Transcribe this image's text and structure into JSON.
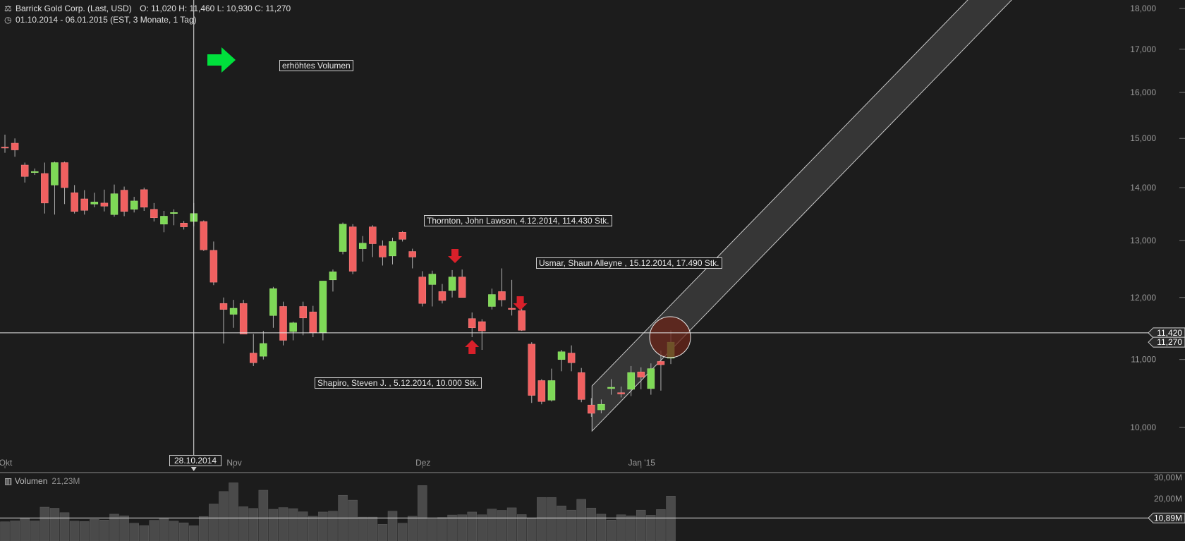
{
  "header": {
    "instrument": "Barrick Gold Corp. (Last, USD)",
    "ohlc": "O: 11,020  H: 11,460  L: 10,930  C: 11,270",
    "range": "01.10.2014 - 06.01.2015 (EST, 3 Monate, 1 Tag)"
  },
  "labels": {
    "volume_signal": "erhöhtes Volumen",
    "insider1": "Thornton, John Lawson, 4.12.2014, 114.430 Stk.",
    "insider2": "Usmar, Shaun Alleyne , 15.12.2014, 17.490 Stk.",
    "insider3": "Shapiro, Steven J. , 5.12.2014, 10.000 Stk.",
    "crosshair_date": "28.10.2014",
    "crosshair_price": "11,420",
    "last_price": "11,270",
    "volume_title": "Volumen",
    "volume_value": "21,23M",
    "volume_crosshair": "10,89M"
  },
  "colors": {
    "background": "#1c1c1c",
    "up": "#7ed957",
    "down": "#f06060",
    "signal_green": "#00e03c",
    "signal_red": "#d9202a",
    "grid_text": "#9a9a9a",
    "channel": "#3a3a3a"
  },
  "chart_data": {
    "type": "candlestick",
    "price_axis": {
      "scale": "log",
      "ticks": [
        10000,
        11000,
        12000,
        13000,
        14000,
        15000,
        16000,
        17000,
        18000
      ],
      "tick_labels": [
        "10,000",
        "11,000",
        "12,000",
        "13,000",
        "14,000",
        "15,000",
        "16,000",
        "17,000",
        "18,000"
      ]
    },
    "x_ticks": [
      {
        "date": "2014-10-01",
        "label": "Okt"
      },
      {
        "date": "2014-11-03",
        "label": "Nov"
      },
      {
        "date": "2014-12-01",
        "label": "Dez"
      },
      {
        "date": "2015-01-02",
        "label": "Jan '15"
      }
    ],
    "candles": [
      {
        "date": "2014-10-01",
        "o": 14820,
        "h": 15080,
        "l": 14700,
        "c": 14800
      },
      {
        "date": "2014-10-02",
        "o": 14900,
        "h": 15000,
        "l": 14620,
        "c": 14760
      },
      {
        "date": "2014-10-03",
        "o": 14450,
        "h": 14500,
        "l": 14100,
        "c": 14220
      },
      {
        "date": "2014-10-06",
        "o": 14300,
        "h": 14380,
        "l": 14250,
        "c": 14320
      },
      {
        "date": "2014-10-07",
        "o": 14280,
        "h": 14500,
        "l": 13500,
        "c": 13700
      },
      {
        "date": "2014-10-08",
        "o": 14050,
        "h": 14520,
        "l": 13480,
        "c": 14500
      },
      {
        "date": "2014-10-09",
        "o": 14500,
        "h": 14520,
        "l": 13680,
        "c": 14000
      },
      {
        "date": "2014-10-10",
        "o": 13900,
        "h": 14050,
        "l": 13500,
        "c": 13540
      },
      {
        "date": "2014-10-13",
        "o": 13780,
        "h": 13950,
        "l": 13480,
        "c": 13560
      },
      {
        "date": "2014-10-14",
        "o": 13680,
        "h": 13900,
        "l": 13620,
        "c": 13720
      },
      {
        "date": "2014-10-15",
        "o": 13700,
        "h": 13960,
        "l": 13540,
        "c": 13640
      },
      {
        "date": "2014-10-16",
        "o": 13480,
        "h": 14060,
        "l": 13440,
        "c": 13880
      },
      {
        "date": "2014-10-17",
        "o": 13950,
        "h": 14020,
        "l": 13450,
        "c": 13540
      },
      {
        "date": "2014-10-20",
        "o": 13580,
        "h": 13820,
        "l": 13520,
        "c": 13740
      },
      {
        "date": "2014-10-21",
        "o": 13960,
        "h": 14000,
        "l": 13550,
        "c": 13620
      },
      {
        "date": "2014-10-22",
        "o": 13580,
        "h": 13700,
        "l": 13350,
        "c": 13420
      },
      {
        "date": "2014-10-23",
        "o": 13300,
        "h": 13550,
        "l": 13150,
        "c": 13450
      },
      {
        "date": "2014-10-24",
        "o": 13520,
        "h": 13580,
        "l": 13280,
        "c": 13520
      },
      {
        "date": "2014-10-27",
        "o": 13320,
        "h": 13360,
        "l": 13200,
        "c": 13250
      },
      {
        "date": "2014-10-28",
        "o": 13350,
        "h": 13700,
        "l": 13260,
        "c": 13500
      },
      {
        "date": "2014-10-29",
        "o": 13350,
        "h": 13370,
        "l": 12810,
        "c": 12830
      },
      {
        "date": "2014-10-30",
        "o": 12820,
        "h": 12980,
        "l": 12210,
        "c": 12260
      },
      {
        "date": "2014-10-31",
        "o": 11900,
        "h": 12000,
        "l": 11250,
        "c": 11800
      },
      {
        "date": "2014-11-03",
        "o": 11720,
        "h": 11960,
        "l": 11500,
        "c": 11820
      },
      {
        "date": "2014-11-04",
        "o": 11900,
        "h": 11960,
        "l": 11400,
        "c": 11400
      },
      {
        "date": "2014-11-05",
        "o": 11100,
        "h": 11400,
        "l": 10900,
        "c": 10950
      },
      {
        "date": "2014-11-06",
        "o": 11050,
        "h": 11450,
        "l": 11000,
        "c": 11250
      },
      {
        "date": "2014-11-07",
        "o": 11700,
        "h": 12180,
        "l": 11500,
        "c": 12150
      },
      {
        "date": "2014-11-10",
        "o": 11850,
        "h": 11930,
        "l": 11220,
        "c": 11300
      },
      {
        "date": "2014-11-11",
        "o": 11440,
        "h": 11600,
        "l": 11300,
        "c": 11580
      },
      {
        "date": "2014-11-12",
        "o": 11850,
        "h": 11930,
        "l": 11380,
        "c": 11660
      },
      {
        "date": "2014-11-13",
        "o": 11760,
        "h": 11860,
        "l": 11350,
        "c": 11420
      },
      {
        "date": "2014-11-14",
        "o": 11420,
        "h": 12280,
        "l": 11300,
        "c": 12280
      },
      {
        "date": "2014-11-17",
        "o": 12300,
        "h": 12480,
        "l": 12100,
        "c": 12440
      },
      {
        "date": "2014-11-18",
        "o": 12800,
        "h": 13330,
        "l": 12750,
        "c": 13300
      },
      {
        "date": "2014-11-19",
        "o": 13250,
        "h": 13300,
        "l": 12400,
        "c": 12450
      },
      {
        "date": "2014-11-20",
        "o": 12850,
        "h": 13080,
        "l": 12620,
        "c": 12950
      },
      {
        "date": "2014-11-21",
        "o": 13250,
        "h": 13280,
        "l": 12700,
        "c": 12940
      },
      {
        "date": "2014-11-24",
        "o": 12900,
        "h": 13000,
        "l": 12550,
        "c": 12700
      },
      {
        "date": "2014-11-25",
        "o": 12720,
        "h": 13050,
        "l": 12570,
        "c": 12980
      },
      {
        "date": "2014-11-26",
        "o": 13150,
        "h": 13170,
        "l": 12980,
        "c": 13020
      },
      {
        "date": "2014-11-28",
        "o": 12800,
        "h": 12850,
        "l": 12500,
        "c": 12700
      },
      {
        "date": "2014-12-01",
        "o": 12350,
        "h": 12450,
        "l": 11850,
        "c": 11900
      },
      {
        "date": "2014-12-02",
        "o": 12220,
        "h": 12460,
        "l": 11850,
        "c": 12400
      },
      {
        "date": "2014-12-03",
        "o": 12100,
        "h": 12230,
        "l": 11900,
        "c": 11950
      },
      {
        "date": "2014-12-04",
        "o": 12120,
        "h": 12470,
        "l": 12000,
        "c": 12350
      },
      {
        "date": "2014-12-05",
        "o": 12350,
        "h": 12480,
        "l": 12000,
        "c": 12000
      },
      {
        "date": "2014-12-08",
        "o": 11650,
        "h": 11750,
        "l": 11350,
        "c": 11500
      },
      {
        "date": "2014-12-09",
        "o": 11600,
        "h": 11640,
        "l": 11150,
        "c": 11450
      },
      {
        "date": "2014-12-10",
        "o": 11850,
        "h": 12150,
        "l": 11800,
        "c": 12050
      },
      {
        "date": "2014-12-11",
        "o": 12100,
        "h": 12500,
        "l": 11850,
        "c": 11960
      },
      {
        "date": "2014-12-12",
        "o": 11820,
        "h": 12300,
        "l": 11700,
        "c": 11800
      },
      {
        "date": "2014-12-15",
        "o": 11780,
        "h": 11850,
        "l": 11450,
        "c": 11460
      },
      {
        "date": "2014-12-16",
        "o": 11240,
        "h": 11270,
        "l": 10350,
        "c": 10460
      },
      {
        "date": "2014-12-17",
        "o": 10680,
        "h": 10700,
        "l": 10330,
        "c": 10370
      },
      {
        "date": "2014-12-18",
        "o": 10390,
        "h": 10860,
        "l": 10370,
        "c": 10680
      },
      {
        "date": "2014-12-19",
        "o": 11000,
        "h": 11150,
        "l": 10820,
        "c": 11120
      },
      {
        "date": "2014-12-22",
        "o": 11100,
        "h": 11220,
        "l": 10820,
        "c": 10950
      },
      {
        "date": "2014-12-23",
        "o": 10800,
        "h": 10870,
        "l": 10360,
        "c": 10400
      },
      {
        "date": "2014-12-24",
        "o": 10320,
        "h": 10420,
        "l": 10150,
        "c": 10200
      },
      {
        "date": "2014-12-26",
        "o": 10250,
        "h": 10400,
        "l": 10200,
        "c": 10330
      },
      {
        "date": "2014-12-29",
        "o": 10560,
        "h": 10700,
        "l": 10470,
        "c": 10580
      },
      {
        "date": "2014-12-30",
        "o": 10500,
        "h": 10590,
        "l": 10430,
        "c": 10480
      },
      {
        "date": "2014-12-31",
        "o": 10550,
        "h": 10900,
        "l": 10450,
        "c": 10800
      },
      {
        "date": "2015-01-02",
        "o": 10810,
        "h": 10880,
        "l": 10550,
        "c": 10730
      },
      {
        "date": "2015-01-05",
        "o": 10560,
        "h": 10940,
        "l": 10470,
        "c": 10860
      },
      {
        "date": "2015-01-06",
        "o": 10970,
        "h": 11140,
        "l": 10530,
        "c": 10920
      },
      {
        "date": "2015-01-07",
        "o": 11020,
        "h": 11460,
        "l": 10930,
        "c": 11270
      }
    ],
    "volume_axis": {
      "ticks": [
        20000000,
        30000000
      ],
      "tick_labels": [
        "20,00M",
        "30,00M"
      ]
    },
    "volume": [
      9.1,
      9.5,
      10.9,
      9.5,
      16,
      15.5,
      13.4,
      9.4,
      9.2,
      10.2,
      9.9,
      12.7,
      11.9,
      8.4,
      7.3,
      9.8,
      10.5,
      9.4,
      8.6,
      7.2,
      11.6,
      17.5,
      23.4,
      27.5,
      16.2,
      15.4,
      24,
      15,
      15.8,
      15.3,
      13.8,
      11.7,
      13.7,
      14.1,
      21.6,
      19.3,
      11.3,
      11.3,
      7.9,
      14.1,
      8.4,
      11.7,
      26.2,
      10.4,
      11.1,
      12.3,
      12.4,
      13.7,
      12.4,
      15.1,
      14.5,
      15.7,
      12.5,
      10.7,
      20.6,
      20.6,
      16.6,
      14.6,
      19.7,
      15.6,
      12.7,
      9.9,
      12.4,
      11.9,
      14.6,
      12.2,
      14.9,
      21.23
    ]
  }
}
